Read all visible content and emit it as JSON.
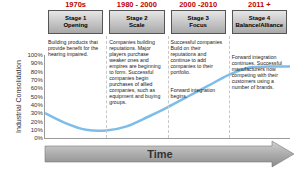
{
  "chart_data": {
    "type": "line",
    "y_label": "Industrial Consolidation",
    "categories": [
      null,
      null,
      null,
      null,
      null,
      null,
      null,
      null,
      null,
      null,
      null,
      null,
      null
    ],
    "values": [
      30,
      18,
      10,
      9,
      14,
      25,
      37,
      50,
      63,
      76,
      85,
      86,
      86
    ],
    "color": "#7dbde8",
    "ylim": [
      0,
      100
    ],
    "yticks": [
      {
        "value": 0,
        "label": "0%"
      },
      {
        "value": 10,
        "label": "10%"
      },
      {
        "value": 20,
        "label": "20%"
      },
      {
        "value": 30,
        "label": "30%"
      },
      {
        "value": 40,
        "label": "40%"
      },
      {
        "value": 50,
        "label": "50%"
      },
      {
        "value": 60,
        "label": "60%"
      },
      {
        "value": 70,
        "label": "70%"
      },
      {
        "value": 80,
        "label": "80%"
      },
      {
        "value": 90,
        "label": "90%"
      },
      {
        "value": 100,
        "label": "100%"
      }
    ],
    "grid": false,
    "tick_labels": "y"
  },
  "stages": [
    {
      "period": "1970s",
      "stage": "Stage 1",
      "name": "Opening",
      "description": [
        "Building products that provide benefit for the hearing impaired."
      ]
    },
    {
      "period": "1980 - 2000",
      "stage": "Stage 2",
      "name": "Scale",
      "description": [
        "Companies building reputations. Major players purchase weaker ones and empires are beginning to form. Successful companies begin purchases of allied companies, such as equipment and buying groups."
      ]
    },
    {
      "period": "2000 -2010",
      "stage": "Stage 3",
      "name": "Focus",
      "description": [
        "Successful companies Build on their reputations and continue to add companies to their portfolio.",
        "Forward integration begins."
      ]
    },
    {
      "period": "2011 +",
      "stage": "Stage 4",
      "name": "Balance/Alliance",
      "description": [
        "Forward integration continues. Successful manufacturers now competing with their customers using a number of brands."
      ]
    }
  ],
  "time_label": "Time"
}
